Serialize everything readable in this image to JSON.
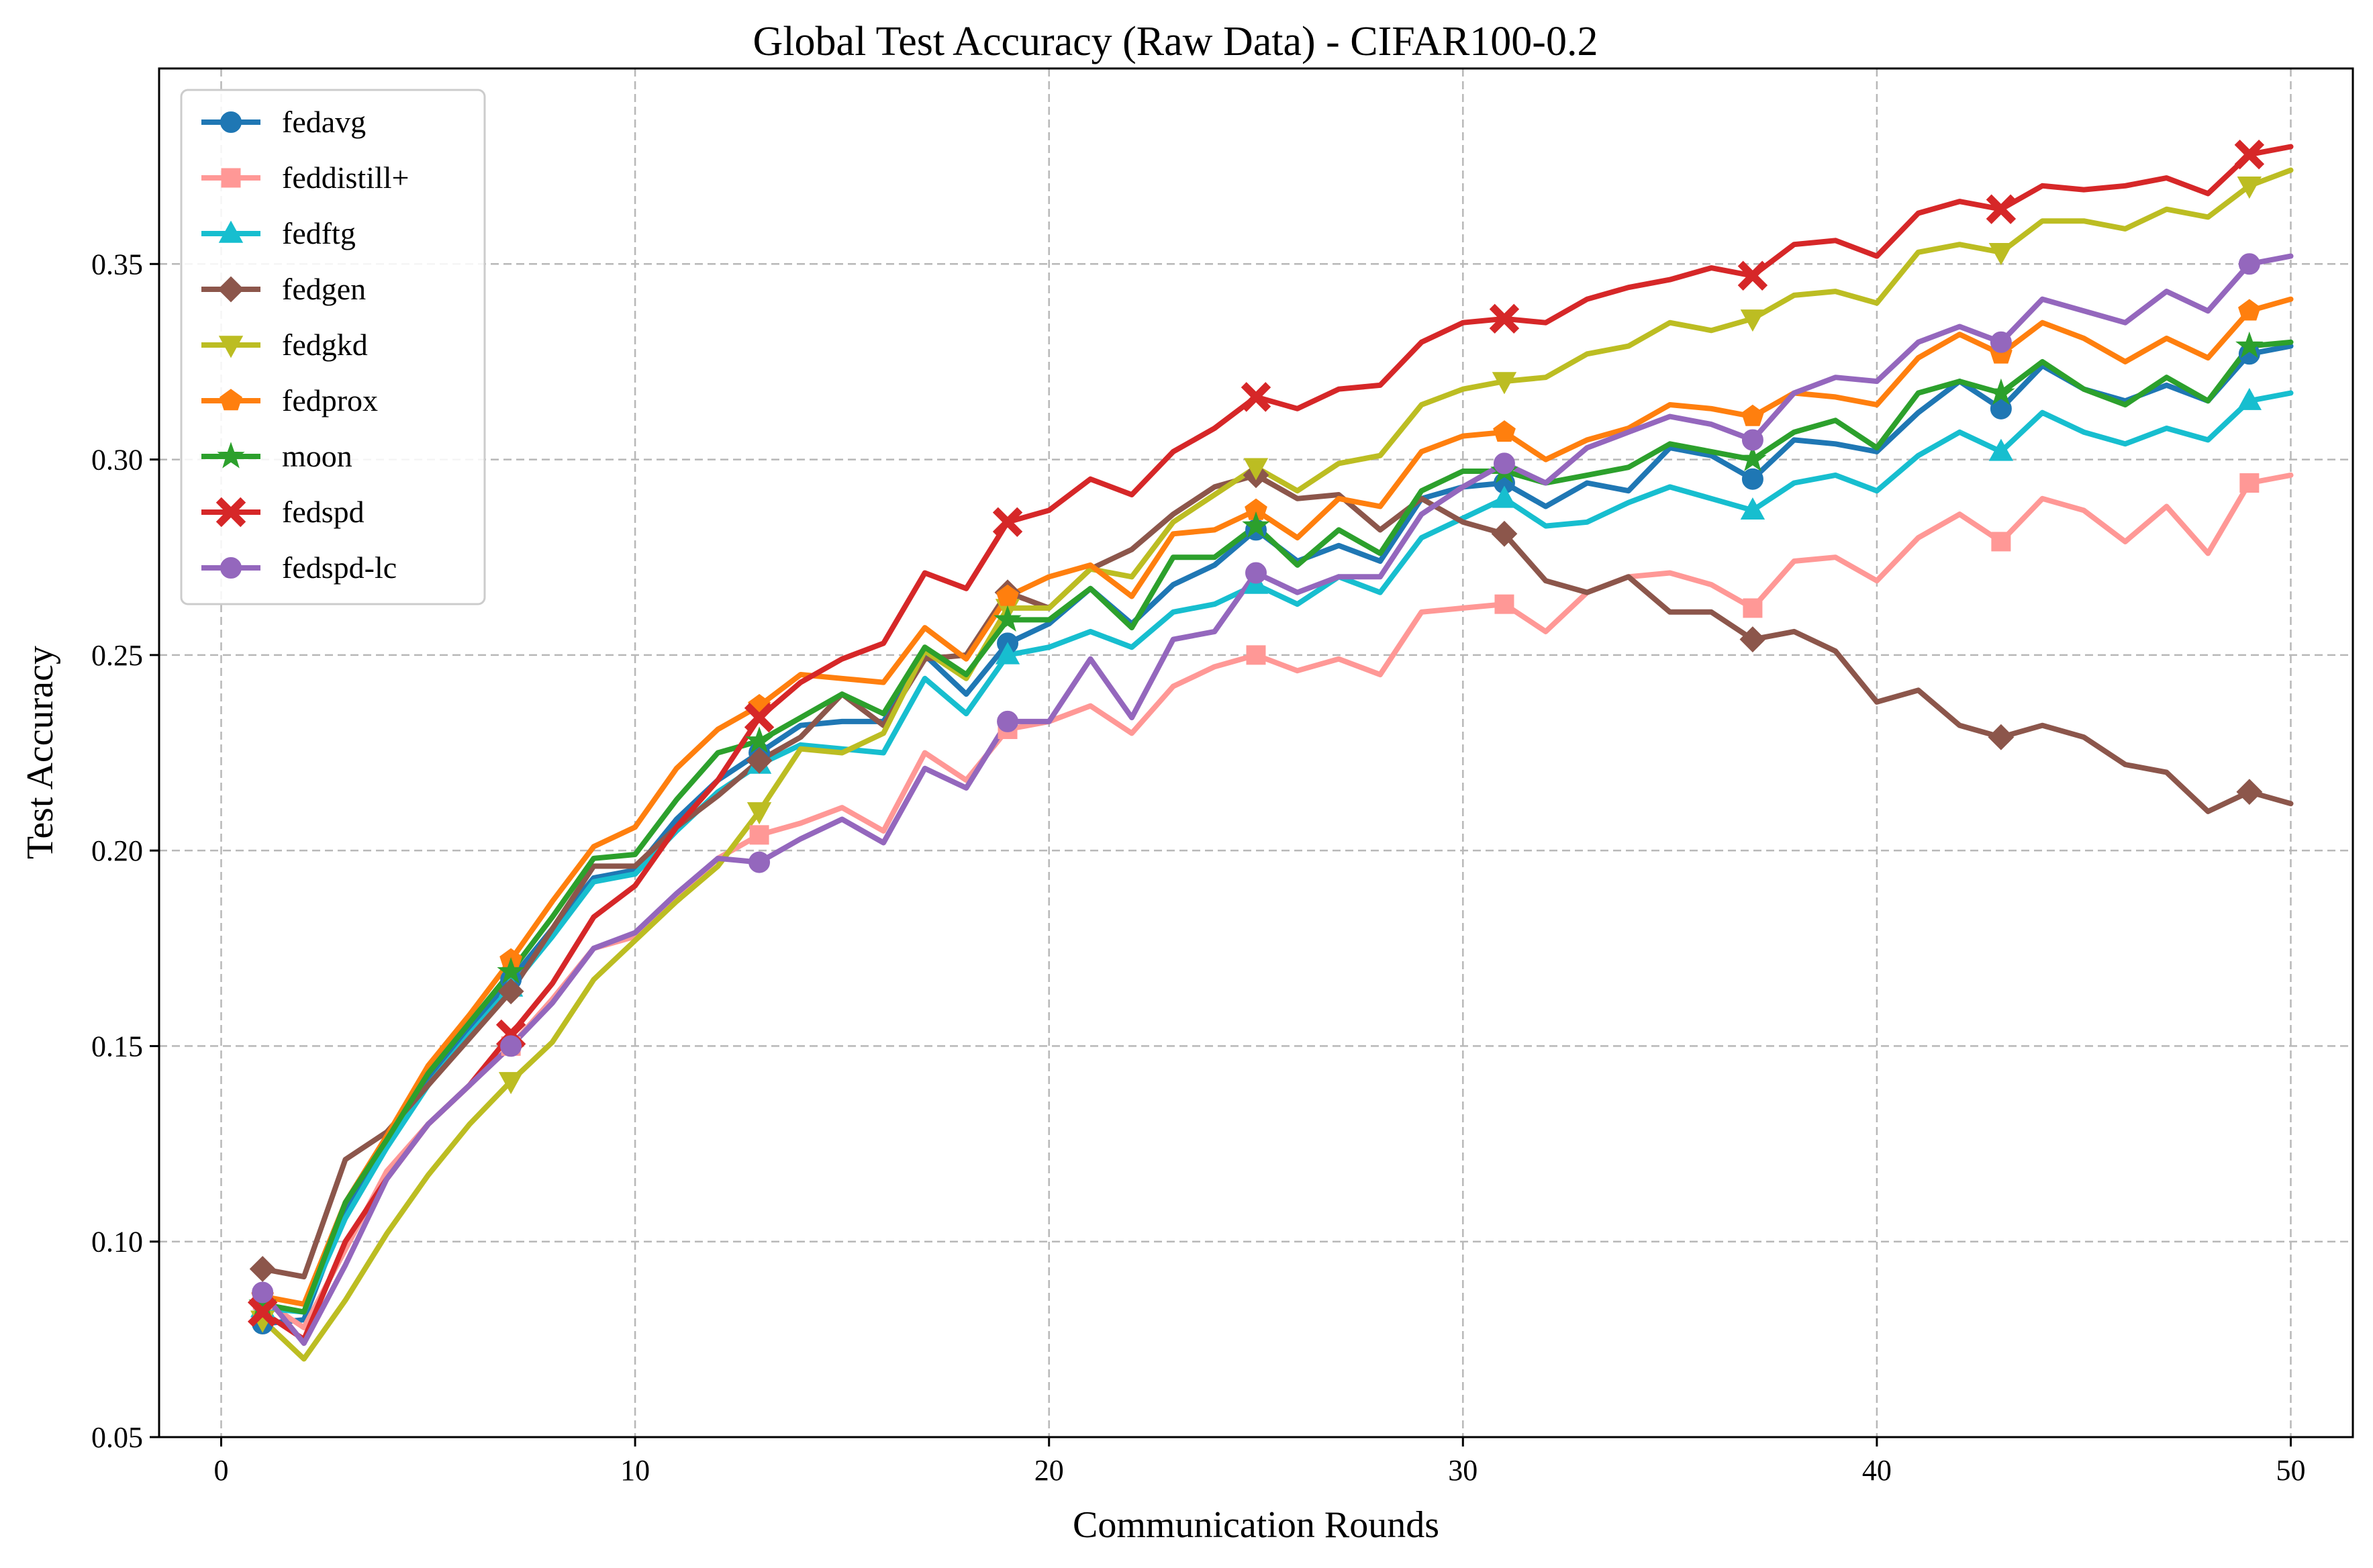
{
  "chart_data": {
    "type": "line",
    "title": "Global Test Accuracy (Raw Data) - CIFAR100-0.2",
    "xlabel": "Communication Rounds",
    "ylabel": "Test Accuracy",
    "xlim": [
      -1.5,
      51.5
    ],
    "ylim": [
      0.05,
      0.4
    ],
    "xticks": [
      0,
      10,
      20,
      30,
      40,
      50
    ],
    "yticks": [
      0.05,
      0.1,
      0.15,
      0.2,
      0.25,
      0.3,
      0.35
    ],
    "xtick_labels": [
      "0",
      "10",
      "20",
      "30",
      "40",
      "50"
    ],
    "ytick_labels": [
      "0.05",
      "0.10",
      "0.15",
      "0.20",
      "0.25",
      "0.30",
      "0.35"
    ],
    "grid": true,
    "legend": "top-left",
    "marker_every": 6,
    "x": [
      1,
      2,
      3,
      4,
      5,
      6,
      7,
      8,
      9,
      10,
      11,
      12,
      13,
      14,
      15,
      16,
      17,
      18,
      19,
      20,
      21,
      22,
      23,
      24,
      25,
      26,
      27,
      28,
      29,
      30,
      31,
      32,
      33,
      34,
      35,
      36,
      37,
      38,
      39,
      40,
      41,
      42,
      43,
      44,
      45,
      46,
      47,
      48,
      49,
      50
    ],
    "series": [
      {
        "name": "fedavg",
        "color": "#1f77b4",
        "marker": "circle",
        "values": [
          0.079,
          0.08,
          0.108,
          0.125,
          0.142,
          0.155,
          0.167,
          0.18,
          0.193,
          0.195,
          0.208,
          0.218,
          0.225,
          0.232,
          0.233,
          0.233,
          0.25,
          0.24,
          0.253,
          0.258,
          0.267,
          0.258,
          0.268,
          0.273,
          0.282,
          0.274,
          0.278,
          0.274,
          0.29,
          0.293,
          0.294,
          0.288,
          0.294,
          0.292,
          0.303,
          0.301,
          0.295,
          0.305,
          0.304,
          0.302,
          0.312,
          0.32,
          0.313,
          0.324,
          0.318,
          0.315,
          0.319,
          0.315,
          0.327,
          0.329
        ]
      },
      {
        "name": "feddistill+",
        "color": "#ff9896",
        "marker": "square",
        "values": [
          0.085,
          0.078,
          0.098,
          0.118,
          0.13,
          0.14,
          0.15,
          0.162,
          0.175,
          0.178,
          0.188,
          0.198,
          0.204,
          0.207,
          0.211,
          0.205,
          0.225,
          0.218,
          0.231,
          0.233,
          0.237,
          0.23,
          0.242,
          0.247,
          0.25,
          0.246,
          0.249,
          0.245,
          0.261,
          0.262,
          0.263,
          0.256,
          0.266,
          0.27,
          0.271,
          0.268,
          0.262,
          0.274,
          0.275,
          0.269,
          0.28,
          0.286,
          0.279,
          0.29,
          0.287,
          0.279,
          0.288,
          0.276,
          0.294,
          0.296
        ]
      },
      {
        "name": "fedftg",
        "color": "#17becf",
        "marker": "triangle-up",
        "values": [
          0.083,
          0.082,
          0.106,
          0.124,
          0.14,
          0.153,
          0.165,
          0.178,
          0.192,
          0.194,
          0.205,
          0.215,
          0.222,
          0.227,
          0.226,
          0.225,
          0.244,
          0.235,
          0.25,
          0.252,
          0.256,
          0.252,
          0.261,
          0.263,
          0.268,
          0.263,
          0.27,
          0.266,
          0.28,
          0.285,
          0.29,
          0.283,
          0.284,
          0.289,
          0.293,
          0.29,
          0.287,
          0.294,
          0.296,
          0.292,
          0.301,
          0.307,
          0.302,
          0.312,
          0.307,
          0.304,
          0.308,
          0.305,
          0.315,
          0.317
        ]
      },
      {
        "name": "fedgen",
        "color": "#8c564b",
        "marker": "diamond",
        "values": [
          0.093,
          0.091,
          0.121,
          0.128,
          0.14,
          0.152,
          0.164,
          0.18,
          0.196,
          0.196,
          0.206,
          0.214,
          0.223,
          0.229,
          0.24,
          0.232,
          0.249,
          0.25,
          0.266,
          0.262,
          0.272,
          0.277,
          0.286,
          0.293,
          0.296,
          0.29,
          0.291,
          0.282,
          0.29,
          0.284,
          0.281,
          0.269,
          0.266,
          0.27,
          0.261,
          0.261,
          0.254,
          0.256,
          0.251,
          0.238,
          0.241,
          0.232,
          0.229,
          0.232,
          0.229,
          0.222,
          0.22,
          0.21,
          0.215,
          0.212
        ]
      },
      {
        "name": "fedgkd",
        "color": "#bcbd22",
        "marker": "triangle-down",
        "values": [
          0.08,
          0.07,
          0.085,
          0.102,
          0.117,
          0.13,
          0.141,
          0.151,
          0.167,
          0.177,
          0.187,
          0.196,
          0.21,
          0.226,
          0.225,
          0.23,
          0.251,
          0.244,
          0.262,
          0.262,
          0.272,
          0.27,
          0.284,
          0.291,
          0.298,
          0.292,
          0.299,
          0.301,
          0.314,
          0.318,
          0.32,
          0.321,
          0.327,
          0.329,
          0.335,
          0.333,
          0.336,
          0.342,
          0.343,
          0.34,
          0.353,
          0.355,
          0.353,
          0.361,
          0.361,
          0.359,
          0.364,
          0.362,
          0.37,
          0.374
        ]
      },
      {
        "name": "fedprox",
        "color": "#ff7f0e",
        "marker": "pentagon",
        "values": [
          0.086,
          0.084,
          0.11,
          0.127,
          0.145,
          0.158,
          0.172,
          0.187,
          0.201,
          0.206,
          0.221,
          0.231,
          0.237,
          0.245,
          0.244,
          0.243,
          0.257,
          0.249,
          0.265,
          0.27,
          0.273,
          0.265,
          0.281,
          0.282,
          0.287,
          0.28,
          0.29,
          0.288,
          0.302,
          0.306,
          0.307,
          0.3,
          0.305,
          0.308,
          0.314,
          0.313,
          0.311,
          0.317,
          0.316,
          0.314,
          0.326,
          0.332,
          0.327,
          0.335,
          0.331,
          0.325,
          0.331,
          0.326,
          0.338,
          0.341
        ]
      },
      {
        "name": "moon",
        "color": "#2ca02c",
        "marker": "star",
        "values": [
          0.084,
          0.082,
          0.11,
          0.126,
          0.143,
          0.156,
          0.169,
          0.183,
          0.198,
          0.199,
          0.213,
          0.225,
          0.228,
          0.234,
          0.24,
          0.235,
          0.252,
          0.245,
          0.259,
          0.259,
          0.267,
          0.257,
          0.275,
          0.275,
          0.283,
          0.273,
          0.282,
          0.276,
          0.292,
          0.297,
          0.297,
          0.294,
          0.296,
          0.298,
          0.304,
          0.302,
          0.3,
          0.307,
          0.31,
          0.303,
          0.317,
          0.32,
          0.317,
          0.325,
          0.318,
          0.314,
          0.321,
          0.315,
          0.329,
          0.33
        ]
      },
      {
        "name": "fedspd",
        "color": "#d62728",
        "marker": "x",
        "values": [
          0.082,
          0.075,
          0.1,
          0.116,
          0.13,
          0.14,
          0.153,
          0.166,
          0.183,
          0.191,
          0.206,
          0.218,
          0.234,
          0.243,
          0.249,
          0.253,
          0.271,
          0.267,
          0.284,
          0.287,
          0.295,
          0.291,
          0.302,
          0.308,
          0.316,
          0.313,
          0.318,
          0.319,
          0.33,
          0.335,
          0.336,
          0.335,
          0.341,
          0.344,
          0.346,
          0.349,
          0.347,
          0.355,
          0.356,
          0.352,
          0.363,
          0.366,
          0.364,
          0.37,
          0.369,
          0.37,
          0.372,
          0.368,
          0.378,
          0.38
        ]
      },
      {
        "name": "fedspd-lc",
        "color": "#9467bd",
        "marker": "circle",
        "values": [
          0.087,
          0.074,
          0.094,
          0.116,
          0.13,
          0.14,
          0.15,
          0.161,
          0.175,
          0.179,
          0.189,
          0.198,
          0.197,
          0.203,
          0.208,
          0.202,
          0.221,
          0.216,
          0.233,
          0.233,
          0.249,
          0.234,
          0.254,
          0.256,
          0.271,
          0.266,
          0.27,
          0.27,
          0.286,
          0.293,
          0.299,
          0.294,
          0.303,
          0.307,
          0.311,
          0.309,
          0.305,
          0.317,
          0.321,
          0.32,
          0.33,
          0.334,
          0.33,
          0.341,
          0.338,
          0.335,
          0.343,
          0.338,
          0.35,
          0.352
        ]
      }
    ]
  }
}
